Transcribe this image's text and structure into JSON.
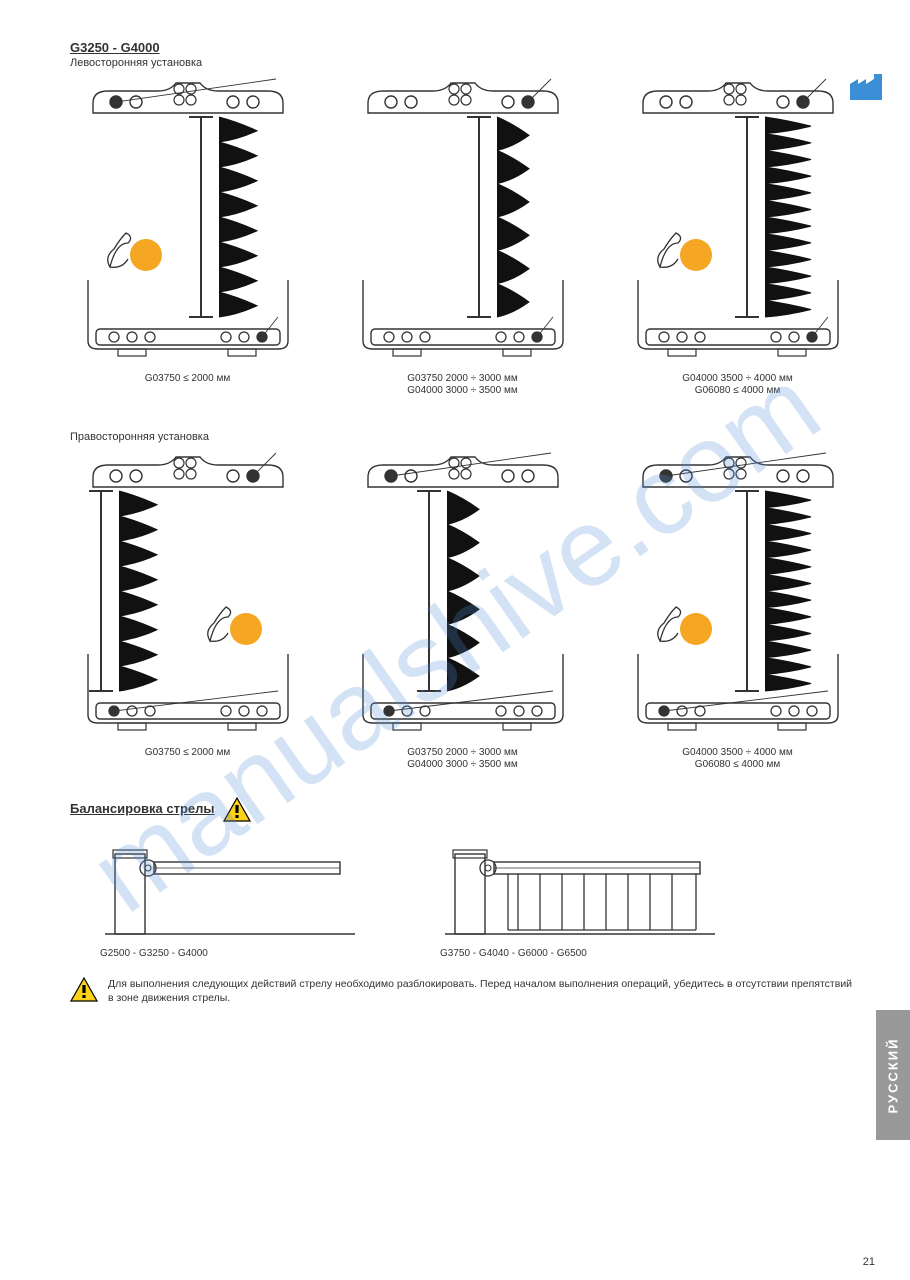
{
  "watermark_text": "manualshive.com",
  "factory_icon_color": "#3b8fd6",
  "side_tab": {
    "text": "РУССКИЙ",
    "bg": "#9a9a9a"
  },
  "page_number": "21",
  "sectionA": {
    "title": "G3250 - G4000",
    "subtitle": "Левосторонняя установка",
    "diagrams": [
      {
        "hook_top": [
          1,
          0,
          0,
          0
        ],
        "hook_bot": [
          0,
          0,
          0,
          1
        ],
        "spring_len": 8,
        "spring_side": "right",
        "bicep": true,
        "caption": "G03750 ≤ 2000 мм"
      },
      {
        "hook_top": [
          0,
          0,
          0,
          1
        ],
        "hook_bot": [
          0,
          0,
          0,
          1
        ],
        "spring_len": 6,
        "spring_side": "right",
        "bicep": false,
        "caption": "G03750 2000 ÷ 3000 мм\nG04000 3000 ÷ 3500 мм"
      },
      {
        "hook_top": [
          0,
          0,
          0,
          1
        ],
        "hook_bot": [
          0,
          0,
          0,
          1
        ],
        "spring_len": 12,
        "spring_side": "right",
        "bicep": true,
        "caption": "G04000 3500 ÷ 4000 мм\nG06080 ≤ 4000 мм"
      }
    ],
    "subtitle2": "Правосторонняя установка",
    "diagrams2": [
      {
        "hook_top": [
          0,
          0,
          0,
          1
        ],
        "hook_bot": [
          1,
          0,
          0,
          0
        ],
        "spring_len": 8,
        "spring_side": "left",
        "bicep": true,
        "caption": "G03750 ≤ 2000 мм"
      },
      {
        "hook_top": [
          1,
          0,
          0,
          0
        ],
        "hook_bot": [
          1,
          0,
          0,
          0
        ],
        "spring_len": 6,
        "spring_side": "center",
        "bicep": false,
        "caption": "G03750 2000 ÷ 3000 мм\nG04000 3000 ÷ 3500 мм"
      },
      {
        "hook_top": [
          1,
          0,
          0,
          0
        ],
        "hook_bot": [
          1,
          0,
          0,
          0
        ],
        "spring_len": 12,
        "spring_side": "right",
        "bicep": true,
        "caption": "G04000 3500 ÷ 4000 мм\nG06080 ≤ 4000 мм"
      }
    ]
  },
  "sectionB": {
    "title": "Балансировка стрелы",
    "barriers": [
      {
        "caption": "G2500 - G3250 - G4000",
        "skirt": false
      },
      {
        "caption": "G3750 - G4040 - G6000 - G6500",
        "skirt": true
      }
    ]
  },
  "bottom_note": "Для выполнения следующих действий стрелу необходимо разблокировать. Перед началом выполнения операций, убедитесь в отсутствии препятствий в зоне движения стрелы.",
  "colors": {
    "line": "#333333",
    "orange": "#f4a020",
    "orange_fill": "#f5a623",
    "warning_yellow": "#fcd116",
    "warning_border": "#000000"
  }
}
